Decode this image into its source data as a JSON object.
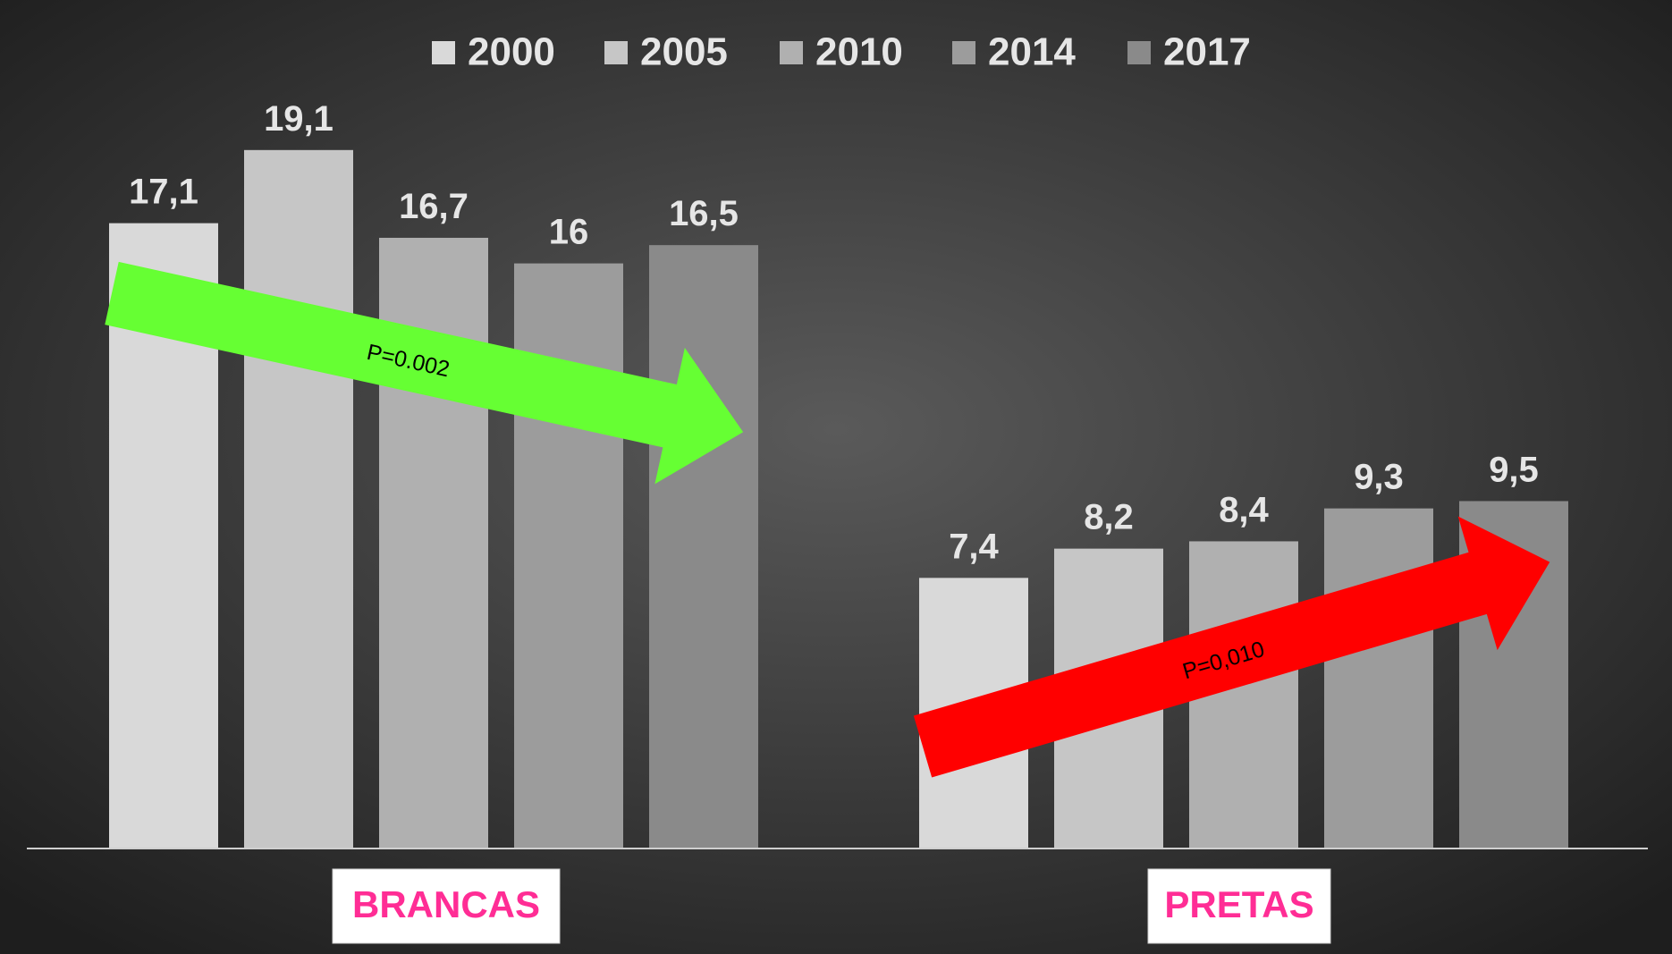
{
  "chart_data": {
    "type": "bar",
    "categories": [
      "BRANCAS",
      "PRETAS"
    ],
    "series": [
      {
        "name": "2000",
        "color": "#d9d9d9",
        "values": [
          17.1,
          7.4
        ],
        "value_labels": [
          "17,1",
          "7,4"
        ]
      },
      {
        "name": "2005",
        "color": "#c6c6c6",
        "values": [
          19.1,
          8.2
        ],
        "value_labels": [
          "19,1",
          "8,2"
        ]
      },
      {
        "name": "2010",
        "color": "#b0b0b0",
        "values": [
          16.7,
          8.4
        ],
        "value_labels": [
          "16,7",
          "8,4"
        ]
      },
      {
        "name": "2014",
        "color": "#9c9c9c",
        "values": [
          16,
          9.3
        ],
        "value_labels": [
          "16",
          "9,3"
        ]
      },
      {
        "name": "2017",
        "color": "#8a8a8a",
        "values": [
          16.5,
          9.5
        ],
        "value_labels": [
          "16,5",
          "9,5"
        ]
      }
    ],
    "annotations": [
      "P=0.002",
      "P=0,010"
    ]
  }
}
